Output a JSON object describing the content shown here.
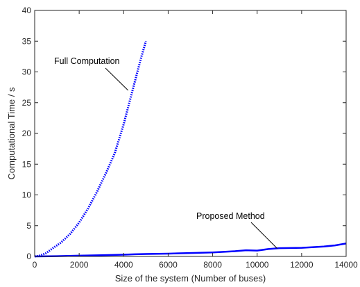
{
  "chart_data": {
    "type": "line",
    "xlabel": "Size of the system (Number of buses)",
    "ylabel": "Computational Time / s",
    "xlim": [
      0,
      14000
    ],
    "ylim": [
      0,
      40
    ],
    "x_ticks": [
      "0",
      "2000",
      "4000",
      "6000",
      "8000",
      "10000",
      "12000",
      "14000"
    ],
    "y_ticks": [
      "0",
      "5",
      "10",
      "15",
      "20",
      "25",
      "30",
      "35",
      "40"
    ],
    "grid": false,
    "legend": false,
    "series": [
      {
        "name": "Full Computation",
        "style": "dotted",
        "color": "#0000ff",
        "x": [
          0,
          200,
          500,
          800,
          1200,
          1600,
          2000,
          2400,
          2800,
          3200,
          3600,
          4000,
          4400,
          4800,
          5000
        ],
        "y": [
          0,
          0.1,
          0.5,
          1.3,
          2.3,
          3.7,
          5.5,
          7.8,
          10.5,
          13.5,
          16.8,
          21.5,
          27.0,
          32.5,
          35.0
        ]
      },
      {
        "name": "Proposed Method",
        "style": "solid",
        "color": "#0000ff",
        "x": [
          0,
          1000,
          2000,
          3000,
          4000,
          4500,
          5000,
          6000,
          7000,
          8000,
          8500,
          9000,
          9500,
          10000,
          10500,
          11000,
          12000,
          13000,
          13500,
          14000
        ],
        "y": [
          0,
          0.05,
          0.12,
          0.2,
          0.28,
          0.35,
          0.4,
          0.45,
          0.55,
          0.65,
          0.75,
          0.85,
          1.0,
          0.95,
          1.2,
          1.35,
          1.4,
          1.6,
          1.8,
          2.1
        ]
      }
    ],
    "annotations": [
      {
        "text": "Full Computation",
        "target": [
          4200,
          27.0
        ]
      },
      {
        "text": "Proposed Method",
        "target": [
          10900,
          1.3
        ]
      }
    ]
  }
}
